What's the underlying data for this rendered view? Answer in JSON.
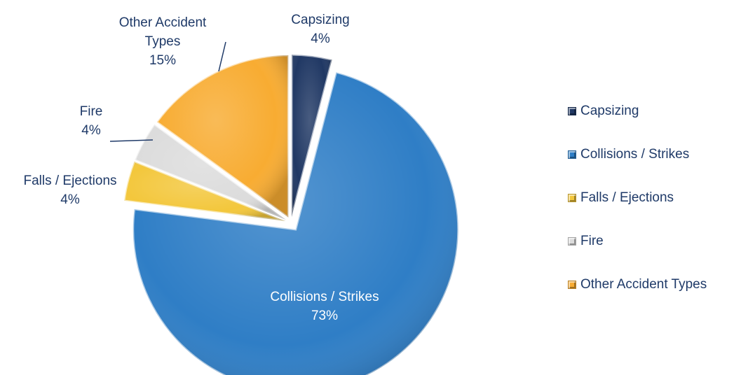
{
  "chart_data": {
    "type": "pie",
    "title": "",
    "slices": [
      {
        "label": "Capsizing",
        "value": 4,
        "display": "4%",
        "color": "#203864"
      },
      {
        "label": "Collisions / Strikes",
        "value": 73,
        "display": "73%",
        "color": "#2f7ec6"
      },
      {
        "label": "Falls / Ejections",
        "value": 4,
        "display": "4%",
        "color": "#f3c73c"
      },
      {
        "label": "Fire",
        "value": 4,
        "display": "4%",
        "color": "#dcdcdc"
      },
      {
        "label": "Other Accident Types",
        "value": 15,
        "display": "15%",
        "color": "#f8ac32"
      }
    ],
    "data_labels": [
      {
        "lines": [
          "Capsizing",
          "4%"
        ]
      },
      {
        "lines": [
          "Collisions / Strikes",
          "73%"
        ]
      },
      {
        "lines": [
          "Falls / Ejections",
          "4%"
        ]
      },
      {
        "lines": [
          "Fire",
          "4%"
        ]
      },
      {
        "lines": [
          "Other Accident",
          "Types",
          "15%"
        ]
      }
    ],
    "legend_position": "right",
    "legend": [
      "Capsizing",
      "Collisions / Strikes",
      "Falls / Ejections",
      "Fire",
      "Other Accident Types"
    ]
  }
}
